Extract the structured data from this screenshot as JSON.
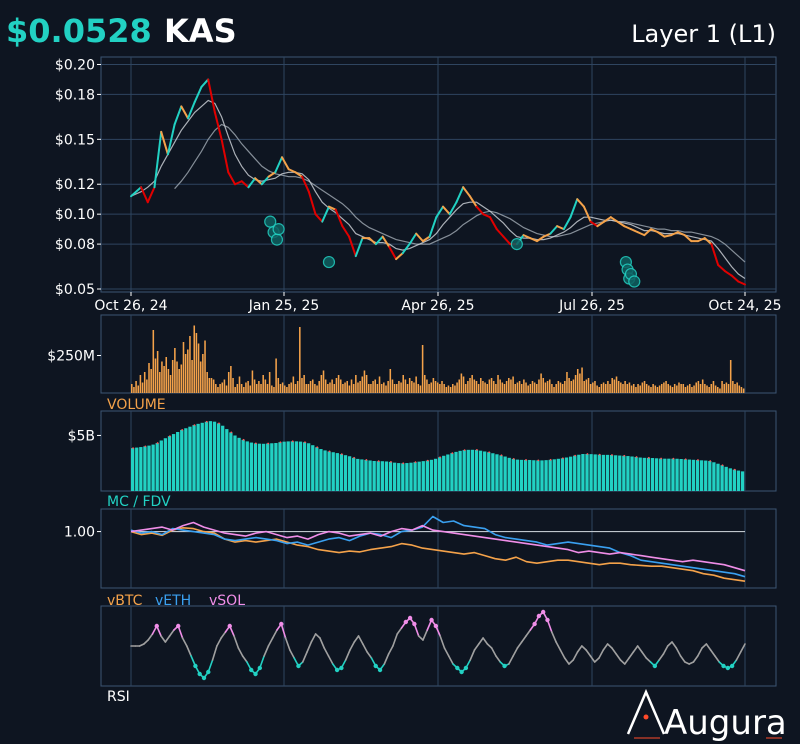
{
  "header": {
    "price": "$0.0528",
    "ticker": "KAS",
    "category": "Layer 1 (L1)"
  },
  "colors": {
    "background": "#0e1521",
    "accent": "#22d1c3",
    "orange": "#f4a24a",
    "red": "#e00000",
    "blue": "#3aa0f0",
    "pink": "#f08ee8",
    "grey": "#a0a0a0"
  },
  "brand": {
    "name": "Augura",
    "logo": "augura-logo"
  },
  "chart_data": [
    {
      "id": "price",
      "type": "line",
      "yticks": [
        "$0.20",
        "$0.18",
        "$0.15",
        "$0.12",
        "$0.10",
        "$0.08",
        "$0.05"
      ],
      "ytick_values": [
        0.2,
        0.18,
        0.15,
        0.12,
        0.1,
        0.08,
        0.05
      ],
      "xticks": [
        "Oct 26, 24",
        "Jan 25, 25",
        "Apr 26, 25",
        "Jul 26, 25",
        "Oct 24, 25"
      ],
      "ylim": [
        0.048,
        0.205
      ],
      "x": [
        0,
        6,
        10,
        14,
        18,
        22,
        26,
        30,
        34,
        38,
        42,
        46,
        50,
        54,
        58,
        62,
        66,
        70,
        74,
        78,
        82,
        86,
        90,
        94,
        98,
        102,
        106,
        110,
        114,
        118,
        122,
        126,
        130,
        134,
        138,
        142,
        146,
        150,
        154,
        158,
        162,
        166,
        170,
        174,
        178,
        182,
        186,
        190,
        194,
        198,
        202,
        206,
        210,
        214,
        218,
        222,
        226,
        230,
        234,
        238,
        242,
        246,
        250,
        254,
        258,
        262,
        266,
        270,
        274,
        278,
        282,
        286,
        290,
        294,
        298,
        302,
        306,
        310,
        314,
        318,
        322,
        326,
        330,
        334,
        338,
        342,
        346,
        350,
        354,
        358,
        362,
        366
      ],
      "close": [
        0.112,
        0.118,
        0.108,
        0.118,
        0.155,
        0.14,
        0.16,
        0.172,
        0.164,
        0.175,
        0.185,
        0.19,
        0.168,
        0.15,
        0.128,
        0.12,
        0.122,
        0.118,
        0.124,
        0.12,
        0.125,
        0.128,
        0.138,
        0.13,
        0.128,
        0.125,
        0.115,
        0.1,
        0.095,
        0.105,
        0.103,
        0.092,
        0.085,
        0.072,
        0.084,
        0.084,
        0.08,
        0.085,
        0.078,
        0.07,
        0.074,
        0.08,
        0.087,
        0.082,
        0.085,
        0.098,
        0.105,
        0.1,
        0.108,
        0.118,
        0.112,
        0.105,
        0.1,
        0.098,
        0.09,
        0.085,
        0.08,
        0.08,
        0.086,
        0.084,
        0.082,
        0.085,
        0.087,
        0.092,
        0.09,
        0.098,
        0.11,
        0.105,
        0.095,
        0.092,
        0.095,
        0.098,
        0.095,
        0.092,
        0.09,
        0.088,
        0.086,
        0.09,
        0.088,
        0.085,
        0.086,
        0.088,
        0.086,
        0.082,
        0.082,
        0.084,
        0.08,
        0.066,
        0.062,
        0.059,
        0.055,
        0.053
      ],
      "ma_fast": [
        0.112,
        0.115,
        0.118,
        0.122,
        0.132,
        0.14,
        0.148,
        0.156,
        0.162,
        0.168,
        0.172,
        0.176,
        0.174,
        0.165,
        0.152,
        0.14,
        0.132,
        0.126,
        0.123,
        0.122,
        0.123,
        0.124,
        0.127,
        0.128,
        0.128,
        0.127,
        0.123,
        0.115,
        0.108,
        0.104,
        0.101,
        0.097,
        0.093,
        0.087,
        0.085,
        0.083,
        0.081,
        0.081,
        0.08,
        0.077,
        0.076,
        0.077,
        0.079,
        0.081,
        0.083,
        0.087,
        0.093,
        0.098,
        0.103,
        0.107,
        0.108,
        0.108,
        0.105,
        0.102,
        0.098,
        0.094,
        0.089,
        0.085,
        0.084,
        0.084,
        0.083,
        0.083,
        0.084,
        0.086,
        0.088,
        0.091,
        0.095,
        0.098,
        0.098,
        0.097,
        0.096,
        0.096,
        0.095,
        0.094,
        0.093,
        0.091,
        0.089,
        0.089,
        0.088,
        0.087,
        0.087,
        0.087,
        0.086,
        0.085,
        0.084,
        0.083,
        0.082,
        0.077,
        0.071,
        0.065,
        0.06,
        0.057
      ],
      "ma_slow": [
        null,
        null,
        null,
        null,
        null,
        null,
        0.117,
        0.122,
        0.128,
        0.135,
        0.142,
        0.15,
        0.156,
        0.16,
        0.158,
        0.153,
        0.147,
        0.142,
        0.137,
        0.132,
        0.129,
        0.127,
        0.126,
        0.125,
        0.125,
        0.124,
        0.122,
        0.119,
        0.116,
        0.113,
        0.11,
        0.107,
        0.103,
        0.098,
        0.094,
        0.091,
        0.089,
        0.087,
        0.085,
        0.083,
        0.082,
        0.081,
        0.08,
        0.08,
        0.08,
        0.082,
        0.084,
        0.086,
        0.089,
        0.093,
        0.096,
        0.099,
        0.101,
        0.102,
        0.101,
        0.099,
        0.097,
        0.094,
        0.091,
        0.089,
        0.087,
        0.086,
        0.085,
        0.085,
        0.086,
        0.087,
        0.089,
        0.091,
        0.093,
        0.094,
        0.095,
        0.096,
        0.095,
        0.095,
        0.094,
        0.093,
        0.092,
        0.091,
        0.09,
        0.09,
        0.089,
        0.089,
        0.088,
        0.088,
        0.087,
        0.086,
        0.085,
        0.083,
        0.08,
        0.076,
        0.072,
        0.068
      ],
      "markers": [
        [
          166,
          0.095
        ],
        [
          170,
          0.088
        ],
        [
          174,
          0.083
        ],
        [
          176,
          0.09
        ],
        [
          236,
          0.068
        ],
        [
          460,
          0.08
        ],
        [
          590,
          0.068
        ],
        [
          592,
          0.063
        ],
        [
          594,
          0.057
        ],
        [
          596,
          0.06
        ],
        [
          600,
          0.055
        ]
      ]
    },
    {
      "id": "volume",
      "type": "bar",
      "label": "VOLUME",
      "yticks": [
        "$250M"
      ],
      "ytick_values": [
        250
      ],
      "ylim": [
        0,
        520
      ],
      "values": [
        60,
        40,
        80,
        50,
        120,
        70,
        140,
        90,
        200,
        160,
        420,
        230,
        280,
        140,
        210,
        180,
        240,
        160,
        120,
        220,
        300,
        210,
        160,
        190,
        340,
        260,
        290,
        380,
        220,
        450,
        400,
        330,
        210,
        260,
        350,
        140,
        100,
        100,
        90,
        60,
        40,
        60,
        70,
        90,
        50,
        140,
        180,
        100,
        40,
        60,
        110,
        60,
        40,
        70,
        80,
        50,
        150,
        90,
        60,
        80,
        60,
        120,
        90,
        60,
        140,
        50,
        40,
        230,
        100,
        60,
        70,
        50,
        40,
        60,
        70,
        110,
        60,
        80,
        440,
        100,
        120,
        60,
        60,
        80,
        90,
        60,
        50,
        80,
        120,
        150,
        90,
        60,
        70,
        90,
        60,
        100,
        120,
        90,
        60,
        70,
        80,
        50,
        90,
        60,
        120,
        70,
        80,
        110,
        150,
        120,
        60,
        60,
        80,
        90,
        60,
        110,
        60,
        70,
        50,
        80,
        160,
        90,
        60,
        60,
        80,
        70,
        120,
        90,
        60,
        100,
        80,
        70,
        110,
        60,
        50,
        320,
        120,
        90,
        60,
        70,
        100,
        80,
        70,
        60,
        80,
        60,
        40,
        50,
        40,
        60,
        50,
        70,
        90,
        130,
        110,
        60,
        80,
        100,
        120,
        90,
        80,
        60,
        100,
        80,
        70,
        60,
        90,
        100,
        80,
        60,
        120,
        90,
        70,
        60,
        80,
        100,
        90,
        110,
        60,
        70,
        80,
        60,
        90,
        70,
        50,
        60,
        80,
        70,
        60,
        90,
        130,
        100,
        70,
        80,
        90,
        60,
        40,
        60,
        80,
        70,
        60,
        80,
        140,
        100,
        80,
        90,
        120,
        160,
        130,
        170,
        80,
        90,
        100,
        60,
        70,
        80,
        50,
        40,
        60,
        70,
        60,
        80,
        60,
        100,
        90,
        110,
        80,
        70,
        60,
        80,
        60,
        70,
        50,
        60,
        40,
        60,
        50,
        70,
        80,
        60,
        50,
        40,
        60,
        50,
        40,
        50,
        60,
        70,
        80,
        60,
        50,
        40,
        60,
        50,
        70,
        60,
        60,
        40,
        50,
        60,
        40,
        50,
        70,
        80,
        60,
        90,
        60,
        50,
        40,
        60,
        80,
        50,
        40,
        30,
        80,
        60,
        70,
        60,
        220,
        80,
        60,
        70,
        50,
        40,
        30
      ]
    },
    {
      "id": "mcfdv",
      "type": "bar",
      "label": "MC / FDV",
      "yticks": [
        "$5B"
      ],
      "ytick_values": [
        5.0
      ],
      "ylim": [
        0,
        7.2
      ]
    },
    {
      "id": "relative",
      "type": "line",
      "yticks": [
        "1.00"
      ],
      "ytick_values": [
        1.0
      ],
      "ylim": [
        0.25,
        1.3
      ],
      "series": [
        {
          "name": "vBTC",
          "color": "#f4a24a",
          "values": [
            1.0,
            0.96,
            0.98,
            0.95,
            1.02,
            1.05,
            1.04,
            1.0,
            0.98,
            0.9,
            0.86,
            0.88,
            0.86,
            0.88,
            0.9,
            0.86,
            0.82,
            0.8,
            0.76,
            0.74,
            0.72,
            0.74,
            0.73,
            0.76,
            0.78,
            0.8,
            0.84,
            0.82,
            0.78,
            0.76,
            0.74,
            0.72,
            0.7,
            0.72,
            0.68,
            0.64,
            0.62,
            0.66,
            0.6,
            0.58,
            0.6,
            0.62,
            0.62,
            0.6,
            0.58,
            0.56,
            0.58,
            0.58,
            0.56,
            0.55,
            0.54,
            0.54,
            0.52,
            0.5,
            0.48,
            0.44,
            0.42,
            0.38,
            0.36,
            0.34
          ]
        },
        {
          "name": "vETH",
          "color": "#3aa0f0",
          "values": [
            1.02,
            0.98,
            1.0,
            0.96,
            1.04,
            1.02,
            1.0,
            0.98,
            0.96,
            0.9,
            0.88,
            0.9,
            0.92,
            0.9,
            0.88,
            0.84,
            0.86,
            0.82,
            0.86,
            0.9,
            0.92,
            0.88,
            0.94,
            0.98,
            0.96,
            0.92,
            1.0,
            1.02,
            1.06,
            1.2,
            1.12,
            1.14,
            1.08,
            1.06,
            1.04,
            0.96,
            0.92,
            0.9,
            0.88,
            0.86,
            0.82,
            0.84,
            0.86,
            0.84,
            0.82,
            0.8,
            0.78,
            0.72,
            0.68,
            0.62,
            0.6,
            0.58,
            0.56,
            0.54,
            0.52,
            0.5,
            0.48,
            0.46,
            0.44,
            0.4
          ]
        },
        {
          "name": "vSOL",
          "color": "#f08ee8",
          "values": [
            1.0,
            1.02,
            1.04,
            1.06,
            1.02,
            1.08,
            1.12,
            1.06,
            1.02,
            0.98,
            0.96,
            0.94,
            0.98,
            1.0,
            0.96,
            0.92,
            0.94,
            0.9,
            0.96,
            1.0,
            0.98,
            0.94,
            0.96,
            0.98,
            0.94,
            1.0,
            1.04,
            1.02,
            1.08,
            1.02,
            1.0,
            0.98,
            0.96,
            0.94,
            0.92,
            0.9,
            0.88,
            0.86,
            0.84,
            0.82,
            0.8,
            0.78,
            0.76,
            0.72,
            0.74,
            0.72,
            0.7,
            0.72,
            0.7,
            0.68,
            0.66,
            0.64,
            0.62,
            0.6,
            0.62,
            0.6,
            0.58,
            0.56,
            0.52,
            0.48
          ]
        }
      ]
    },
    {
      "id": "rsi",
      "type": "line",
      "label": "RSI",
      "ylim": [
        10,
        90
      ],
      "overbought": 70,
      "oversold": 30,
      "values": [
        50,
        50,
        50,
        52,
        56,
        62,
        70,
        60,
        54,
        60,
        66,
        70,
        58,
        50,
        40,
        30,
        22,
        18,
        24,
        36,
        50,
        58,
        64,
        70,
        60,
        48,
        40,
        34,
        26,
        22,
        28,
        40,
        50,
        58,
        66,
        72,
        58,
        46,
        38,
        30,
        34,
        44,
        54,
        62,
        58,
        48,
        40,
        32,
        26,
        28,
        36,
        46,
        54,
        60,
        52,
        44,
        38,
        30,
        26,
        32,
        42,
        50,
        62,
        68,
        74,
        78,
        72,
        60,
        56,
        66,
        76,
        70,
        60,
        48,
        40,
        32,
        28,
        24,
        28,
        36,
        46,
        52,
        58,
        52,
        48,
        40,
        34,
        30,
        32,
        40,
        48,
        54,
        60,
        66,
        72,
        80,
        84,
        76,
        64,
        54,
        46,
        38,
        32,
        36,
        44,
        50,
        46,
        40,
        34,
        38,
        46,
        52,
        48,
        42,
        36,
        32,
        38,
        44,
        50,
        44,
        38,
        34,
        30,
        36,
        42,
        50,
        54,
        48,
        40,
        34,
        32,
        34,
        40,
        48,
        52,
        46,
        40,
        34,
        30,
        28,
        30,
        36,
        44,
        52
      ]
    }
  ]
}
